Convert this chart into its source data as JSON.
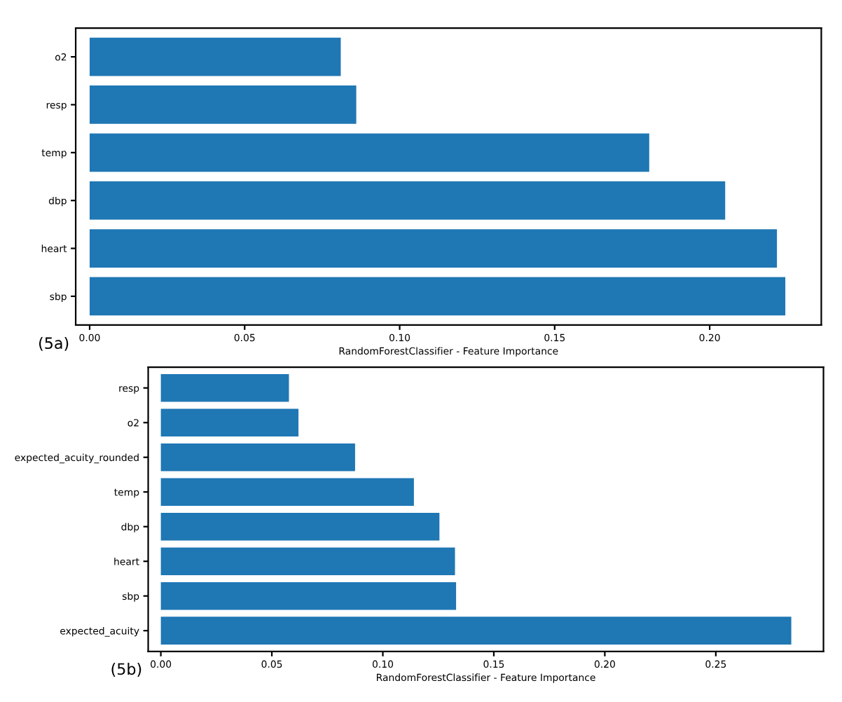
{
  "chart_data": [
    {
      "type": "bar",
      "orientation": "horizontal",
      "xlabel": "RandomForestClassifier - Feature Importance",
      "categories": [
        "o2",
        "resp",
        "temp",
        "dbp",
        "heart",
        "sbp"
      ],
      "values": [
        0.081,
        0.086,
        0.1805,
        0.205,
        0.2217,
        0.2244
      ],
      "color": "#1f77b4",
      "xlim": [
        -0.0045,
        0.236
      ],
      "xticks": [
        {
          "value": 0,
          "label": "0.00"
        },
        {
          "value": 0.05,
          "label": "0.05"
        },
        {
          "value": 0.1,
          "label": "0.10"
        },
        {
          "value": 0.15,
          "label": "0.15"
        },
        {
          "value": 0.2,
          "label": "0.20"
        }
      ],
      "annotations": [
        "(5a)"
      ],
      "grid": false,
      "legend": false
    },
    {
      "type": "bar",
      "orientation": "horizontal",
      "xlabel": "RandomForestClassifier - Feature Importance",
      "categories": [
        "resp",
        "o2",
        "expected_acuity_rounded",
        "temp",
        "dbp",
        "heart",
        "sbp",
        "expected_acuity"
      ],
      "values": [
        0.0577,
        0.062,
        0.0875,
        0.114,
        0.1255,
        0.1325,
        0.133,
        0.284
      ],
      "color": "#1f77b4",
      "xlim": [
        -0.0057,
        0.2985
      ],
      "xticks": [
        {
          "value": 0,
          "label": "0.00"
        },
        {
          "value": 0.05,
          "label": "0.05"
        },
        {
          "value": 0.1,
          "label": "0.10"
        },
        {
          "value": 0.15,
          "label": "0.15"
        },
        {
          "value": 0.2,
          "label": "0.20"
        },
        {
          "value": 0.25,
          "label": "0.25"
        }
      ],
      "annotations": [
        "(5b)"
      ],
      "grid": false,
      "legend": false
    }
  ]
}
